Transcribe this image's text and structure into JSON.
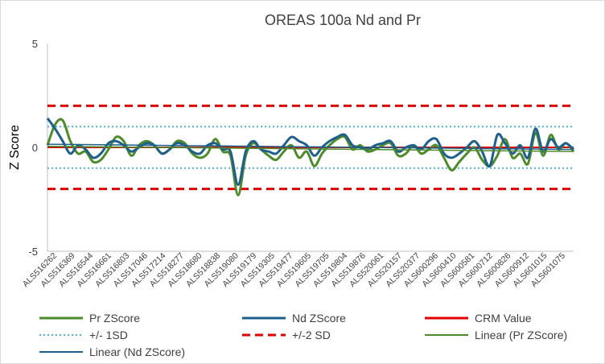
{
  "chart_data": {
    "type": "line",
    "title": "OREAS 100a Nd and Pr",
    "xlabel": "",
    "ylabel": "Z Score",
    "ylim": [
      -5,
      5
    ],
    "yticks": [
      "5",
      "0",
      "-5"
    ],
    "grid": false,
    "legend_position": "bottom",
    "x_tick_labels": [
      "ALS516262",
      "ALS516369",
      "ALS516544",
      "ALS516661",
      "ALS516803",
      "ALS517046",
      "ALS517214",
      "ALS518277",
      "ALS518680",
      "ALS518838",
      "ALS519080",
      "ALS519179",
      "ALS519305",
      "ALS519477",
      "ALS519605",
      "ALS519705",
      "ALS519804",
      "ALS519876",
      "ALS520061",
      "ALS520157",
      "ALS520377",
      "ALS600296",
      "ALS600410",
      "ALS600581",
      "ALS600712",
      "ALS600826",
      "ALS600912",
      "ALS601015",
      "ALS601075"
    ],
    "series": [
      {
        "name": "Pr ZScore",
        "color": "#4e8b2a",
        "values": [
          0.1,
          1.1,
          1.3,
          0.3,
          -0.3,
          -0.2,
          -0.7,
          -0.6,
          -0.1,
          0.5,
          0.3,
          -0.4,
          0.1,
          0.3,
          0.1,
          -0.3,
          -0.1,
          0.3,
          0.2,
          -0.3,
          -0.5,
          -0.3,
          0.4,
          -0.2,
          -0.4,
          -2.3,
          -0.4,
          0.2,
          -0.1,
          -0.4,
          -0.6,
          -0.2,
          0.1,
          -0.5,
          -0.2,
          -0.9,
          -0.3,
          0.1,
          0.4,
          0.5,
          -0.1,
          0.1,
          -0.2,
          -0.1,
          0.1,
          0.2,
          -0.4,
          -0.3,
          0.1,
          -0.3,
          -0.1,
          0.1,
          -0.5,
          -1.1,
          -0.7,
          -0.3,
          0.0,
          -0.6,
          -0.9,
          -0.4,
          0.4,
          -0.5,
          -0.3,
          -0.8,
          0.7,
          -0.4,
          0.6,
          -0.1,
          0.2,
          -0.2
        ]
      },
      {
        "name": "Nd ZScore",
        "color": "#1f5f8b",
        "values": [
          1.4,
          0.9,
          0.3,
          -0.3,
          0.1,
          -0.1,
          -0.5,
          -0.3,
          0.2,
          0.3,
          0.1,
          -0.2,
          0.0,
          0.2,
          0.1,
          -0.3,
          -0.1,
          0.2,
          0.1,
          -0.2,
          -0.3,
          0.1,
          0.2,
          -0.1,
          -0.2,
          -1.8,
          -0.2,
          0.3,
          -0.1,
          -0.2,
          -0.3,
          0.1,
          0.5,
          0.3,
          0.1,
          -0.4,
          0.0,
          0.3,
          0.5,
          0.6,
          0.1,
          0.0,
          -0.1,
          0.1,
          0.2,
          0.3,
          -0.2,
          0.0,
          0.1,
          -0.1,
          0.3,
          0.4,
          -0.3,
          -0.5,
          -0.3,
          0.0,
          0.3,
          -0.2,
          -0.9,
          0.6,
          0.2,
          -0.3,
          0.1,
          -0.5,
          0.9,
          -0.2,
          0.4,
          0.0,
          0.2,
          -0.1
        ]
      },
      {
        "name": "CRM Value",
        "color": "#e00000",
        "constant": 0
      },
      {
        "name": "+/- 1SD",
        "color": "#4fb3d9",
        "constants": [
          1,
          -1
        ]
      },
      {
        "name": "+/-2 SD",
        "color": "#e00000",
        "constants": [
          2,
          -2
        ]
      },
      {
        "name": "Linear (Pr ZScore)",
        "color": "#4e8b2a",
        "trend": [
          0.05,
          -0.2
        ]
      },
      {
        "name": "Linear (Nd ZScore)",
        "color": "#1f5f8b",
        "trend": [
          0.15,
          -0.1
        ]
      }
    ]
  }
}
